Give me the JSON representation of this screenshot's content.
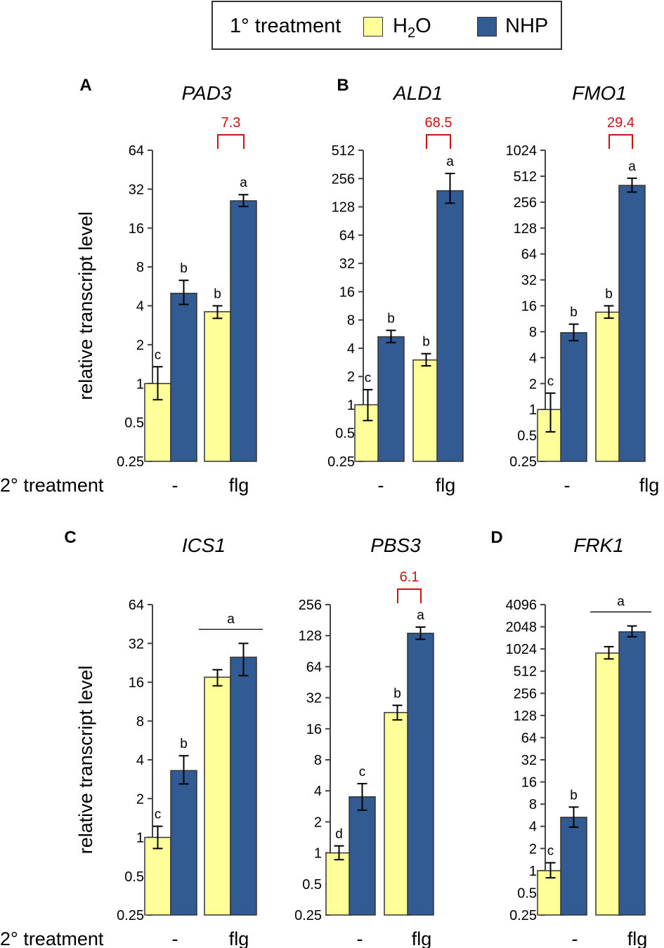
{
  "legend": {
    "title": "1° treatment",
    "h2o_base": "H",
    "h2o_sub": "2",
    "h2o_tail": "O",
    "nhp": "NHP"
  },
  "colors": {
    "h2o": "#ffff99",
    "nhp": "#335b93",
    "annot": "#cc1111"
  },
  "left_ylabel": "relative transcript level",
  "x_row_label": "2° treatment",
  "chart_data": [
    {
      "panel": "A",
      "gene": "PAD3",
      "type": "bar",
      "scale": "log2",
      "categories": [
        "-",
        "flg"
      ],
      "ticks": [
        0.25,
        0.5,
        1,
        2,
        4,
        8,
        16,
        32,
        64
      ],
      "ylabel": "relative transcript level",
      "series": [
        {
          "name": "H2O",
          "values": [
            1,
            3.6
          ],
          "err_low": [
            0.75,
            3.2
          ],
          "err_high": [
            1.35,
            4.0
          ]
        },
        {
          "name": "NHP",
          "values": [
            5.0,
            26
          ],
          "err_low": [
            4.1,
            23.5
          ],
          "err_high": [
            6.3,
            29
          ]
        }
      ],
      "letters": [
        [
          "c",
          "b"
        ],
        [
          "b",
          "a"
        ]
      ],
      "fold": "7.3",
      "shared_letter": null
    },
    {
      "panel": "B",
      "gene": "ALD1",
      "type": "bar",
      "scale": "log2",
      "categories": [
        "-",
        "flg"
      ],
      "ticks": [
        0.25,
        0.5,
        1,
        2,
        4,
        8,
        16,
        32,
        64,
        128,
        256,
        512
      ],
      "series": [
        {
          "name": "H2O",
          "values": [
            1,
            3.0
          ],
          "err_low": [
            0.68,
            2.6
          ],
          "err_high": [
            1.45,
            3.5
          ]
        },
        {
          "name": "NHP",
          "values": [
            5.3,
            190
          ],
          "err_low": [
            4.6,
            140
          ],
          "err_high": [
            6.2,
            290
          ]
        }
      ],
      "letters": [
        [
          "c",
          "b"
        ],
        [
          "b",
          "a"
        ]
      ],
      "fold": "68.5",
      "shared_letter": null
    },
    {
      "panel": "",
      "gene": "FMO1",
      "type": "bar",
      "scale": "log2",
      "categories": [
        "-",
        "flg"
      ],
      "ticks": [
        0.25,
        0.5,
        1,
        2,
        4,
        8,
        16,
        32,
        64,
        128,
        256,
        512,
        1024
      ],
      "series": [
        {
          "name": "H2O",
          "values": [
            1,
            13.5
          ],
          "err_low": [
            0.55,
            11.5
          ],
          "err_high": [
            1.55,
            16
          ]
        },
        {
          "name": "NHP",
          "values": [
            7.8,
            400
          ],
          "err_low": [
            6.3,
            335
          ],
          "err_high": [
            9.8,
            485
          ]
        }
      ],
      "letters": [
        [
          "c",
          "b"
        ],
        [
          "b",
          "a"
        ]
      ],
      "fold": "29.4",
      "shared_letter": null
    },
    {
      "panel": "C",
      "gene": "ICS1",
      "type": "bar",
      "scale": "log2",
      "categories": [
        "-",
        "flg"
      ],
      "ticks": [
        0.25,
        0.5,
        1,
        2,
        4,
        8,
        16,
        32,
        64
      ],
      "ylabel": "relative transcript level",
      "series": [
        {
          "name": "H2O",
          "values": [
            1,
            17.5
          ],
          "err_low": [
            0.82,
            15
          ],
          "err_high": [
            1.22,
            20
          ]
        },
        {
          "name": "NHP",
          "values": [
            3.3,
            25
          ],
          "err_low": [
            2.6,
            18
          ],
          "err_high": [
            4.3,
            32
          ]
        }
      ],
      "letters": [
        [
          "c",
          "b"
        ],
        [
          "",
          ""
        ]
      ],
      "fold": null,
      "shared_letter": "a"
    },
    {
      "panel": "",
      "gene": "PBS3",
      "type": "bar",
      "scale": "log2",
      "categories": [
        "-",
        "flg"
      ],
      "ticks": [
        0.25,
        0.5,
        1,
        2,
        4,
        8,
        16,
        32,
        64,
        128,
        256
      ],
      "series": [
        {
          "name": "H2O",
          "values": [
            1,
            23
          ],
          "err_low": [
            0.86,
            19.5
          ],
          "err_high": [
            1.17,
            27
          ]
        },
        {
          "name": "NHP",
          "values": [
            3.5,
            135
          ],
          "err_low": [
            2.6,
            118
          ],
          "err_high": [
            4.7,
            155
          ]
        }
      ],
      "letters": [
        [
          "d",
          "c"
        ],
        [
          "b",
          "a"
        ]
      ],
      "fold": "6.1",
      "shared_letter": null
    },
    {
      "panel": "D",
      "gene": "FRK1",
      "type": "bar",
      "scale": "log2",
      "categories": [
        "-",
        "flg"
      ],
      "ticks": [
        0.25,
        0.5,
        1,
        2,
        4,
        8,
        16,
        32,
        64,
        128,
        256,
        512,
        1024,
        2048,
        4096
      ],
      "series": [
        {
          "name": "H2O",
          "values": [
            1,
            900
          ],
          "err_low": [
            0.8,
            750
          ],
          "err_high": [
            1.28,
            1100
          ]
        },
        {
          "name": "NHP",
          "values": [
            5.3,
            1750
          ],
          "err_low": [
            3.9,
            1500
          ],
          "err_high": [
            7.3,
            2100
          ]
        }
      ],
      "letters": [
        [
          "c",
          "b"
        ],
        [
          "",
          ""
        ]
      ],
      "fold": null,
      "shared_letter": "a"
    }
  ]
}
